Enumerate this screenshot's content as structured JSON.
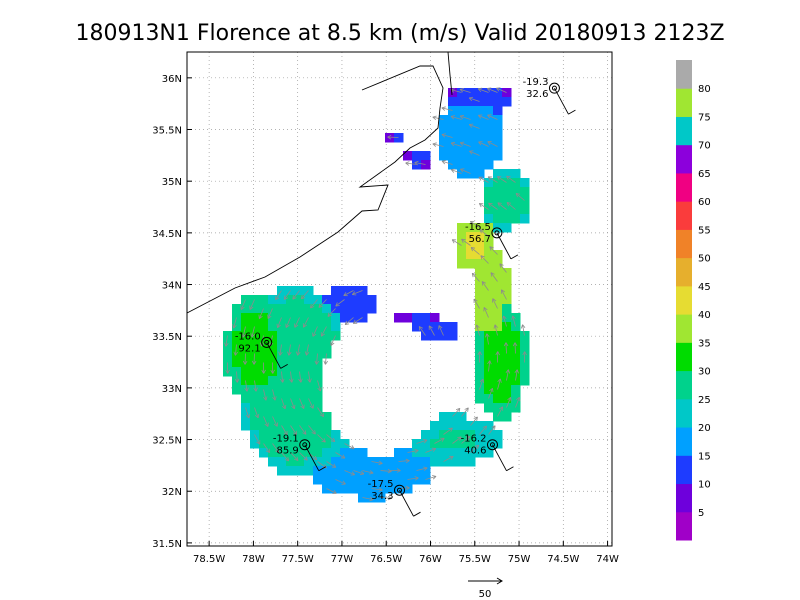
{
  "chart_data": {
    "type": "heatmap",
    "title": "180913N1 Florence at 8.5 km (m/s) Valid 20180913 2123Z",
    "x_ticks": [
      "78.5W",
      "78W",
      "77.5W",
      "77W",
      "76.5W",
      "76W",
      "75.5W",
      "75W",
      "74.5W",
      "74W"
    ],
    "y_ticks": [
      "31.5N",
      "32N",
      "32.5N",
      "33N",
      "33.5N",
      "34N",
      "34.5N",
      "35N",
      "35.5N",
      "36N"
    ],
    "xlim": [
      -78.75,
      -73.95
    ],
    "ylim": [
      31.47,
      36.25
    ],
    "grid": true,
    "colorbar": {
      "levels": [
        "5",
        "10",
        "15",
        "20",
        "25",
        "30",
        "35",
        "40",
        "45",
        "50",
        "55",
        "60",
        "65",
        "70",
        "75",
        "80"
      ],
      "colors": [
        "#a000c8",
        "#6e00dc",
        "#1e3cff",
        "#00a0ff",
        "#00c8c8",
        "#00d28c",
        "#00dc00",
        "#a0e632",
        "#e6dc32",
        "#e6af2d",
        "#f08228",
        "#fa3c3c",
        "#f00082",
        "#8c00dc",
        "#00c8c8",
        "#a0e632",
        "#aaaaaa"
      ]
    },
    "arrow_scale_label": "50",
    "stations": [
      {
        "lon": -74.6,
        "lat": 35.9,
        "value_top": "-19.3",
        "value_bottom": "32.6"
      },
      {
        "lon": -75.25,
        "lat": 34.5,
        "value_top": "-16.5",
        "value_bottom": "56.7"
      },
      {
        "lon": -77.85,
        "lat": 33.44,
        "value_top": "-16.0",
        "value_bottom": "92.1"
      },
      {
        "lon": -77.42,
        "lat": 32.45,
        "value_top": "-19.1",
        "value_bottom": "85.9"
      },
      {
        "lon": -75.3,
        "lat": 32.45,
        "value_top": "-16.2",
        "value_bottom": "40.6"
      },
      {
        "lon": -76.35,
        "lat": 32.01,
        "value_top": "-17.5",
        "value_bottom": "34.3"
      }
    ]
  }
}
